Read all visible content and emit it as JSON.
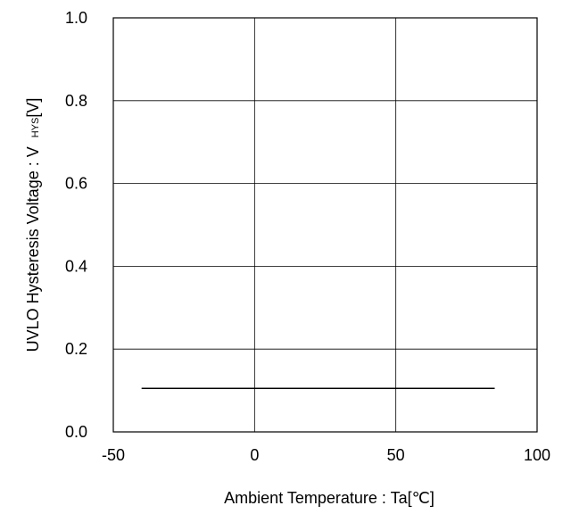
{
  "chart_data": {
    "type": "line",
    "title": "",
    "xlabel": "Ambient Temperature : Ta[℃]",
    "ylabel_prefix": "UVLO Hysteresis Voltage : V",
    "ylabel_subscript": "HYS",
    "ylabel_suffix": "[V]",
    "xlim": [
      -50,
      100
    ],
    "ylim": [
      0.0,
      1.0
    ],
    "x_ticks": [
      -50,
      0,
      50,
      100
    ],
    "x_tick_labels": [
      "-50",
      "0",
      "50",
      "100"
    ],
    "y_ticks": [
      0.0,
      0.2,
      0.4,
      0.6,
      0.8,
      1.0
    ],
    "y_tick_labels": [
      "0.0",
      "0.2",
      "0.4",
      "0.6",
      "0.8",
      "1.0"
    ],
    "grid": true,
    "series": [
      {
        "color": "#000000",
        "x": [
          -40,
          85
        ],
        "y": [
          0.105,
          0.105
        ]
      }
    ]
  }
}
